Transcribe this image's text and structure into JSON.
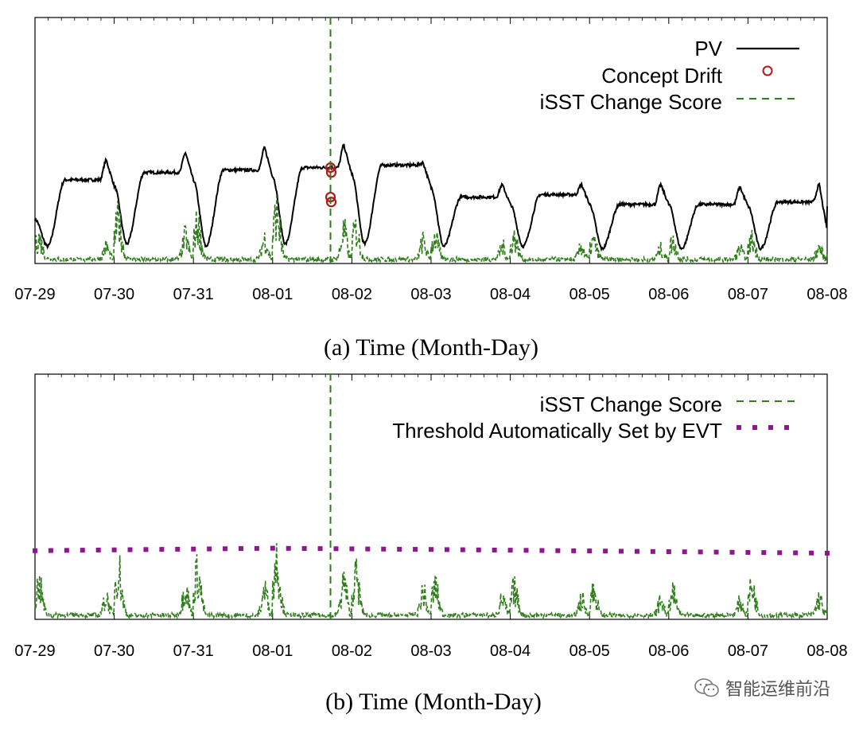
{
  "watermark": {
    "text": "智能运维前沿",
    "icon": "wechat-icon"
  },
  "colors": {
    "pv": "#000000",
    "drift": "#b21a1a",
    "score": "#2e7d1a",
    "threshold": "#8e168e"
  },
  "chart_data": [
    {
      "id": "a",
      "type": "line",
      "caption": "(a) Time (Month-Day)",
      "xlabel": "Time (Month-Day)",
      "x_ticks": [
        "07-29",
        "07-30",
        "07-31",
        "08-01",
        "08-02",
        "08-03",
        "08-04",
        "08-05",
        "08-06",
        "08-07",
        "08-08"
      ],
      "xlim": [
        0,
        10
      ],
      "ylim": [
        0,
        1
      ],
      "legend_position": "top-right",
      "series": [
        {
          "name": "PV",
          "style": "solid",
          "color": "#000000",
          "day_shape": {
            "trough_day_fraction": 0.16,
            "peak_day_fraction": 0.9,
            "day_min": [
              0.07,
              0.08,
              0.07,
              0.08,
              0.08,
              0.07,
              0.07,
              0.06,
              0.06,
              0.06
            ],
            "day_plateau": [
              0.34,
              0.37,
              0.38,
              0.39,
              0.4,
              0.27,
              0.28,
              0.24,
              0.24,
              0.25
            ],
            "day_peak": [
              0.42,
              0.45,
              0.47,
              0.48,
              0.41,
              0.32,
              0.32,
              0.32,
              0.31,
              0.32
            ]
          }
        },
        {
          "name": "Concept Drift",
          "style": "marker-circle",
          "color": "#b21a1a",
          "points": [
            {
              "x": 3.73,
              "y": 0.39
            },
            {
              "x": 3.74,
              "y": 0.37
            },
            {
              "x": 3.73,
              "y": 0.27
            },
            {
              "x": 3.74,
              "y": 0.25
            }
          ]
        },
        {
          "name": "iSST Change Score",
          "style": "dashed",
          "color": "#2e7d1a",
          "baseline": 0.02,
          "day_peaks": [
            0.1,
            0.18,
            0.16,
            0.22,
            0.14,
            0.1,
            0.1,
            0.08,
            0.08,
            0.09
          ],
          "spike": {
            "x": 3.73,
            "y": 1.0
          }
        }
      ]
    },
    {
      "id": "b",
      "type": "line",
      "caption": "(b) Time (Month-Day)",
      "xlabel": "Time (Month-Day)",
      "x_ticks": [
        "07-29",
        "07-30",
        "07-31",
        "08-01",
        "08-02",
        "08-03",
        "08-04",
        "08-05",
        "08-06",
        "08-07",
        "08-08"
      ],
      "xlim": [
        0,
        10
      ],
      "ylim": [
        0,
        1
      ],
      "legend_position": "top-right",
      "series": [
        {
          "name": "iSST Change Score",
          "style": "dashed",
          "color": "#2e7d1a",
          "baseline": 0.02,
          "day_peaks": [
            0.14,
            0.22,
            0.2,
            0.26,
            0.18,
            0.13,
            0.12,
            0.11,
            0.1,
            0.13
          ],
          "spike": {
            "x": 3.73,
            "y": 1.0
          }
        },
        {
          "name": "Threshold Automatically Set by EVT",
          "style": "dotted",
          "color": "#8e168e",
          "points": [
            {
              "x": 0,
              "y": 0.28
            },
            {
              "x": 3.0,
              "y": 0.29
            },
            {
              "x": 5.0,
              "y": 0.285
            },
            {
              "x": 10,
              "y": 0.27
            }
          ]
        }
      ]
    }
  ]
}
